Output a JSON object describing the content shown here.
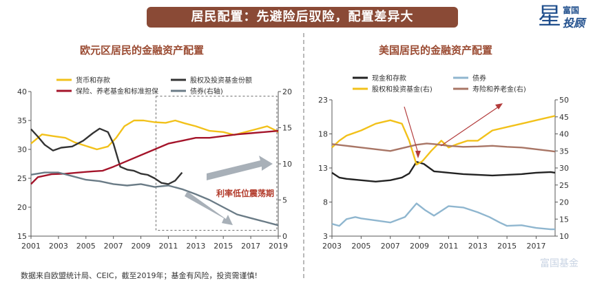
{
  "header": {
    "banner_title": "居民配置：先避险后驭险，配置差异大"
  },
  "logo": {
    "line1": "富国",
    "line2": "投顾",
    "star": "星"
  },
  "footnote": "数据来自欧盟统计局、CEIC，截至2019年；基金有风险，投资需谨慎!",
  "watermark": "富国基金",
  "colors": {
    "banner": "#8a4a36",
    "title": "#9a4a31",
    "gold": "#f2c11a",
    "red": "#a4142a",
    "dark": "#333333",
    "lightblue": "#8fb6cf",
    "brown": "#a87565",
    "arrow": "#a8b0b8"
  },
  "chart_data": [
    {
      "type": "line",
      "title": "欧元区居民的金融资产配置",
      "x_ticks": [
        "2001",
        "2003",
        "2005",
        "2007",
        "2009",
        "2011",
        "2013",
        "2015",
        "2017",
        "2019"
      ],
      "xlim": [
        2001,
        2019
      ],
      "y_left": {
        "ticks": [
          "15",
          "20",
          "25",
          "30",
          "35",
          "40"
        ],
        "range": [
          15,
          40
        ]
      },
      "y_right": {
        "ticks": [
          "0",
          "5",
          "10",
          "15",
          "20"
        ],
        "range": [
          0,
          20
        ]
      },
      "annotation": "利率低位震荡期",
      "legend": [
        {
          "name": "货币和存款",
          "color": "#f2c11a"
        },
        {
          "name": "股权及投资基金份额",
          "color": "#333333"
        },
        {
          "name": "保险、养老基金和标准担保",
          "color": "#a4142a"
        },
        {
          "name": "债券(右轴)",
          "color": "#6a7b86"
        }
      ],
      "series": [
        {
          "name": "货币和存款",
          "axis": "left",
          "color": "#f2c11a",
          "x": [
            2001,
            2001.8,
            2002.6,
            2003.5,
            2004.2,
            2005,
            2005.8,
            2006.6,
            2007.2,
            2007.8,
            2008.5,
            2009.2,
            2010,
            2010.8,
            2011.5,
            2012.2,
            2013,
            2014,
            2015,
            2015.8,
            2016.6,
            2017.4,
            2018.2,
            2018.8,
            2019
          ],
          "y": [
            31,
            32.6,
            32.3,
            32.0,
            31.2,
            30.6,
            30.0,
            30.5,
            32.0,
            34.0,
            35.0,
            35.0,
            34.7,
            34.6,
            35.0,
            34.5,
            34.0,
            33.2,
            33.0,
            32.5,
            33.0,
            33.5,
            34.0,
            33.3,
            33.0
          ]
        },
        {
          "name": "股权及投资基金份额",
          "axis": "left",
          "color": "#333333",
          "x": [
            2001,
            2001.5,
            2002,
            2002.6,
            2003.2,
            2004,
            2004.8,
            2005.5,
            2006,
            2006.6,
            2007,
            2007.5,
            2008,
            2008.5,
            2009,
            2009.5,
            2010,
            2010.5,
            2011,
            2011.5,
            2012
          ],
          "y": [
            33.5,
            32.2,
            30.8,
            29.8,
            30.3,
            30.5,
            31.5,
            32.8,
            33.6,
            33.0,
            31.0,
            27.0,
            26.5,
            26.3,
            25.8,
            25.6,
            25.0,
            24.2,
            24.0,
            24.6,
            26.0
          ]
        },
        {
          "name": "保险、养老基金和标准担保",
          "axis": "left",
          "color": "#a4142a",
          "x": [
            2001,
            2001.5,
            2002.5,
            2003.5,
            2004.5,
            2005.5,
            2006.2,
            2007,
            2008,
            2009,
            2010,
            2011,
            2012,
            2013,
            2014,
            2015,
            2016,
            2017,
            2018,
            2019
          ],
          "y": [
            24,
            25.2,
            25.7,
            25.8,
            26.0,
            26.2,
            26.3,
            27.0,
            28.0,
            29.0,
            30.0,
            31.0,
            31.5,
            32.0,
            32.0,
            32.3,
            32.6,
            32.8,
            33.0,
            33.2
          ]
        },
        {
          "name": "债券(右轴)",
          "axis": "right",
          "color": "#6a7b86",
          "x": [
            2001,
            2002,
            2003,
            2004,
            2005,
            2006,
            2007,
            2008,
            2009,
            2010,
            2011,
            2012,
            2013,
            2014,
            2015,
            2016,
            2017,
            2018,
            2019
          ],
          "y": [
            8.5,
            8.8,
            8.8,
            8.3,
            7.8,
            7.6,
            7.2,
            7.0,
            7.2,
            6.8,
            7.0,
            6.5,
            5.8,
            5.0,
            4.0,
            3.0,
            2.5,
            2.0,
            1.5
          ]
        }
      ]
    },
    {
      "type": "line",
      "title": "美国居民的金融资产配置",
      "x_ticks": [
        "2003",
        "2005",
        "2007",
        "2009",
        "2011",
        "2013",
        "2015",
        "2017"
      ],
      "xlim": [
        2003,
        2018.3
      ],
      "y_left": {
        "ticks": [
          "3",
          "8",
          "13",
          "18",
          "23"
        ],
        "range": [
          3,
          23
        ]
      },
      "y_right": {
        "ticks": [
          "10",
          "15",
          "20",
          "25",
          "30",
          "35",
          "40",
          "45",
          "50"
        ],
        "range": [
          10,
          50
        ]
      },
      "legend": [
        {
          "name": "现金和存款",
          "color": "#222222"
        },
        {
          "name": "债券",
          "color": "#8fb6cf"
        },
        {
          "name": "股权和投资基金(右)",
          "color": "#f2c11a"
        },
        {
          "name": "寿险和养老金(右)",
          "color": "#a87565"
        }
      ],
      "series": [
        {
          "name": "现金和存款",
          "axis": "left",
          "color": "#222222",
          "x": [
            2003,
            2003.5,
            2004,
            2005,
            2006,
            2007,
            2007.8,
            2008.3,
            2008.8,
            2009.3,
            2010,
            2011,
            2012,
            2013,
            2014,
            2015,
            2016,
            2017,
            2018,
            2018.3
          ],
          "y": [
            12.3,
            11.6,
            11.4,
            11.2,
            11.0,
            11.2,
            11.6,
            12.2,
            13.9,
            13.6,
            12.5,
            12.3,
            12.1,
            12.0,
            11.9,
            12.0,
            12.1,
            12.3,
            12.4,
            12.3
          ]
        },
        {
          "name": "债券",
          "axis": "left",
          "color": "#8fb6cf",
          "x": [
            2003,
            2003.5,
            2004,
            2004.6,
            2005,
            2006,
            2007,
            2008,
            2008.8,
            2009.4,
            2010,
            2011,
            2012,
            2013,
            2013.8,
            2014.5,
            2015,
            2016,
            2017,
            2018,
            2018.3
          ],
          "y": [
            4.8,
            4.5,
            5.5,
            5.8,
            5.6,
            5.3,
            5.0,
            5.8,
            7.8,
            6.8,
            6.0,
            7.4,
            7.2,
            6.5,
            5.8,
            5.0,
            4.5,
            4.6,
            4.2,
            4.0,
            4.0
          ]
        },
        {
          "name": "股权和投资基金(右)",
          "axis": "right",
          "color": "#f2c11a",
          "x": [
            2003,
            2003.5,
            2004,
            2005,
            2006,
            2007,
            2007.8,
            2008.3,
            2008.8,
            2009.2,
            2009.8,
            2010.5,
            2011,
            2011.6,
            2012.3,
            2013,
            2014,
            2015,
            2016,
            2017,
            2018,
            2018.3
          ],
          "y": [
            36,
            38,
            39.5,
            41,
            43,
            44,
            43,
            38,
            31,
            32,
            35,
            38,
            36,
            37,
            38,
            38,
            41,
            42,
            43,
            44,
            45,
            45.3
          ]
        },
        {
          "name": "寿险和养老金(右)",
          "axis": "right",
          "color": "#a87565",
          "x": [
            2003,
            2004,
            2005,
            2006,
            2007,
            2008,
            2008.8,
            2009.5,
            2010,
            2011,
            2012,
            2013,
            2014,
            2015,
            2016,
            2017,
            2018,
            2018.3
          ],
          "y": [
            37,
            36.5,
            36,
            35.5,
            35,
            36,
            36.8,
            37.2,
            37,
            36.5,
            36.2,
            36.3,
            36.5,
            36.2,
            36,
            35.5,
            35,
            34.8
          ]
        }
      ]
    }
  ]
}
